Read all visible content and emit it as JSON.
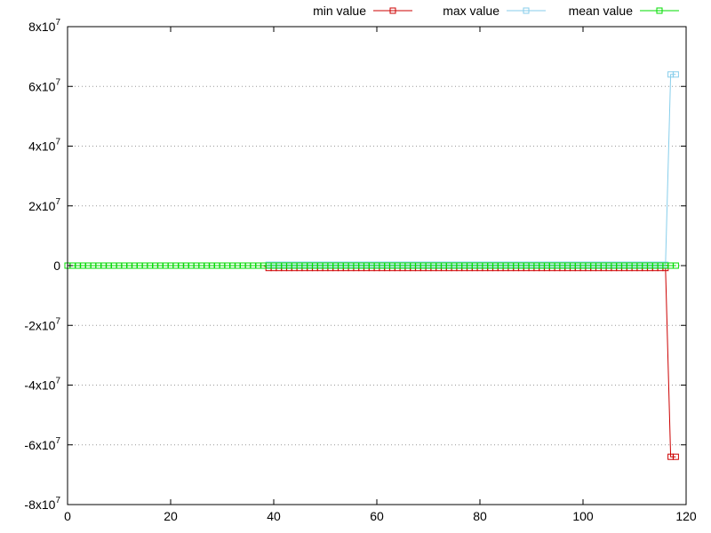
{
  "chart_data": {
    "type": "line",
    "title": "",
    "xlabel": "",
    "ylabel": "",
    "xlim": [
      0,
      120
    ],
    "ylim": [
      -80000000,
      80000000
    ],
    "x_ticks": [
      {
        "value": 0,
        "label": "0"
      },
      {
        "value": 20,
        "label": "20"
      },
      {
        "value": 40,
        "label": "40"
      },
      {
        "value": 60,
        "label": "60"
      },
      {
        "value": 80,
        "label": "80"
      },
      {
        "value": 100,
        "label": "100"
      },
      {
        "value": 120,
        "label": "120"
      }
    ],
    "y_ticks": [
      {
        "value": 80000000,
        "base": "8x10",
        "exp": "7"
      },
      {
        "value": 60000000,
        "base": "6x10",
        "exp": "7"
      },
      {
        "value": 40000000,
        "base": "4x10",
        "exp": "7"
      },
      {
        "value": 20000000,
        "base": "2x10",
        "exp": "7"
      },
      {
        "value": 0,
        "base": "0",
        "exp": ""
      },
      {
        "value": -20000000,
        "base": "-2x10",
        "exp": "7"
      },
      {
        "value": -40000000,
        "base": "-4x10",
        "exp": "7"
      },
      {
        "value": -60000000,
        "base": "-6x10",
        "exp": "7"
      },
      {
        "value": -80000000,
        "base": "-8x10",
        "exp": "7"
      }
    ],
    "grid": "horizontal-dotted",
    "legend_position": "top-right",
    "series": [
      {
        "name": "min value",
        "color": "#cc0000",
        "x": [
          0,
          1,
          2,
          3,
          4,
          5,
          6,
          7,
          8,
          9,
          10,
          11,
          12,
          13,
          14,
          15,
          16,
          17,
          18,
          19,
          20,
          21,
          22,
          23,
          24,
          25,
          26,
          27,
          28,
          29,
          30,
          31,
          32,
          33,
          34,
          35,
          36,
          37,
          38,
          39,
          40,
          41,
          42,
          43,
          44,
          45,
          46,
          47,
          48,
          49,
          50,
          51,
          52,
          53,
          54,
          55,
          56,
          57,
          58,
          59,
          60,
          61,
          62,
          63,
          64,
          65,
          66,
          67,
          68,
          69,
          70,
          71,
          72,
          73,
          74,
          75,
          76,
          77,
          78,
          79,
          80,
          81,
          82,
          83,
          84,
          85,
          86,
          87,
          88,
          89,
          90,
          91,
          92,
          93,
          94,
          95,
          96,
          97,
          98,
          99,
          100,
          101,
          102,
          103,
          104,
          105,
          106,
          107,
          108,
          109,
          110,
          111,
          112,
          113,
          114,
          115,
          116,
          117,
          118
        ],
        "y": [
          0,
          0,
          0,
          0,
          0,
          0,
          0,
          0,
          0,
          0,
          0,
          0,
          0,
          0,
          0,
          0,
          0,
          0,
          0,
          0,
          0,
          0,
          0,
          0,
          0,
          0,
          0,
          0,
          0,
          0,
          0,
          0,
          0,
          0,
          0,
          0,
          0,
          0,
          0,
          -800000,
          -800000,
          -800000,
          -800000,
          -800000,
          -800000,
          -800000,
          -800000,
          -800000,
          -800000,
          -800000,
          -800000,
          -800000,
          -800000,
          -800000,
          -800000,
          -800000,
          -800000,
          -800000,
          -800000,
          -800000,
          -800000,
          -800000,
          -800000,
          -800000,
          -800000,
          -800000,
          -800000,
          -800000,
          -800000,
          -800000,
          -800000,
          -800000,
          -800000,
          -800000,
          -800000,
          -800000,
          -800000,
          -800000,
          -800000,
          -800000,
          -800000,
          -800000,
          -800000,
          -800000,
          -800000,
          -800000,
          -800000,
          -800000,
          -800000,
          -800000,
          -800000,
          -800000,
          -800000,
          -800000,
          -800000,
          -800000,
          -800000,
          -800000,
          -800000,
          -800000,
          -800000,
          -800000,
          -800000,
          -800000,
          -800000,
          -800000,
          -800000,
          -800000,
          -800000,
          -800000,
          -800000,
          -800000,
          -800000,
          -800000,
          -800000,
          -800000,
          -800000,
          -64000000,
          -64000000
        ]
      },
      {
        "name": "max value",
        "color": "#87ceeb",
        "x": [
          0,
          1,
          2,
          3,
          4,
          5,
          6,
          7,
          8,
          9,
          10,
          11,
          12,
          13,
          14,
          15,
          16,
          17,
          18,
          19,
          20,
          21,
          22,
          23,
          24,
          25,
          26,
          27,
          28,
          29,
          30,
          31,
          32,
          33,
          34,
          35,
          36,
          37,
          38,
          39,
          40,
          41,
          42,
          43,
          44,
          45,
          46,
          47,
          48,
          49,
          50,
          51,
          52,
          53,
          54,
          55,
          56,
          57,
          58,
          59,
          60,
          61,
          62,
          63,
          64,
          65,
          66,
          67,
          68,
          69,
          70,
          71,
          72,
          73,
          74,
          75,
          76,
          77,
          78,
          79,
          80,
          81,
          82,
          83,
          84,
          85,
          86,
          87,
          88,
          89,
          90,
          91,
          92,
          93,
          94,
          95,
          96,
          97,
          98,
          99,
          100,
          101,
          102,
          103,
          104,
          105,
          106,
          107,
          108,
          109,
          110,
          111,
          112,
          113,
          114,
          115,
          116,
          117,
          118
        ],
        "y": [
          0,
          0,
          0,
          0,
          0,
          0,
          0,
          0,
          0,
          0,
          0,
          0,
          0,
          0,
          0,
          0,
          0,
          0,
          0,
          0,
          0,
          0,
          0,
          0,
          0,
          0,
          0,
          0,
          0,
          0,
          0,
          0,
          0,
          0,
          0,
          0,
          0,
          0,
          0,
          300000,
          300000,
          300000,
          300000,
          300000,
          300000,
          300000,
          300000,
          300000,
          300000,
          300000,
          300000,
          300000,
          300000,
          300000,
          300000,
          300000,
          300000,
          300000,
          300000,
          300000,
          300000,
          300000,
          300000,
          300000,
          300000,
          300000,
          300000,
          300000,
          300000,
          300000,
          300000,
          300000,
          300000,
          300000,
          300000,
          300000,
          300000,
          300000,
          300000,
          300000,
          300000,
          300000,
          300000,
          300000,
          300000,
          300000,
          300000,
          300000,
          300000,
          300000,
          300000,
          300000,
          300000,
          300000,
          300000,
          300000,
          300000,
          300000,
          300000,
          300000,
          300000,
          300000,
          300000,
          300000,
          300000,
          300000,
          300000,
          300000,
          300000,
          300000,
          300000,
          300000,
          300000,
          300000,
          300000,
          300000,
          300000,
          64000000,
          64000000
        ]
      },
      {
        "name": "mean value",
        "color": "#00dd00",
        "x": [
          0,
          1,
          2,
          3,
          4,
          5,
          6,
          7,
          8,
          9,
          10,
          11,
          12,
          13,
          14,
          15,
          16,
          17,
          18,
          19,
          20,
          21,
          22,
          23,
          24,
          25,
          26,
          27,
          28,
          29,
          30,
          31,
          32,
          33,
          34,
          35,
          36,
          37,
          38,
          39,
          40,
          41,
          42,
          43,
          44,
          45,
          46,
          47,
          48,
          49,
          50,
          51,
          52,
          53,
          54,
          55,
          56,
          57,
          58,
          59,
          60,
          61,
          62,
          63,
          64,
          65,
          66,
          67,
          68,
          69,
          70,
          71,
          72,
          73,
          74,
          75,
          76,
          77,
          78,
          79,
          80,
          81,
          82,
          83,
          84,
          85,
          86,
          87,
          88,
          89,
          90,
          91,
          92,
          93,
          94,
          95,
          96,
          97,
          98,
          99,
          100,
          101,
          102,
          103,
          104,
          105,
          106,
          107,
          108,
          109,
          110,
          111,
          112,
          113,
          114,
          115,
          116,
          117,
          118
        ],
        "y": [
          0,
          0,
          0,
          0,
          0,
          0,
          0,
          0,
          0,
          0,
          0,
          0,
          0,
          0,
          0,
          0,
          0,
          0,
          0,
          0,
          0,
          0,
          0,
          0,
          0,
          0,
          0,
          0,
          0,
          0,
          0,
          0,
          0,
          0,
          0,
          0,
          0,
          0,
          0,
          0,
          0,
          0,
          0,
          0,
          0,
          0,
          0,
          0,
          0,
          0,
          0,
          0,
          0,
          0,
          0,
          0,
          0,
          0,
          0,
          0,
          0,
          0,
          0,
          0,
          0,
          0,
          0,
          0,
          0,
          0,
          0,
          0,
          0,
          0,
          0,
          0,
          0,
          0,
          0,
          0,
          0,
          0,
          0,
          0,
          0,
          0,
          0,
          0,
          0,
          0,
          0,
          0,
          0,
          0,
          0,
          0,
          0,
          0,
          0,
          0,
          0,
          0,
          0,
          0,
          0,
          0,
          0,
          0,
          0,
          0,
          0,
          0,
          0,
          0,
          0,
          0,
          0,
          0,
          0
        ]
      }
    ]
  }
}
